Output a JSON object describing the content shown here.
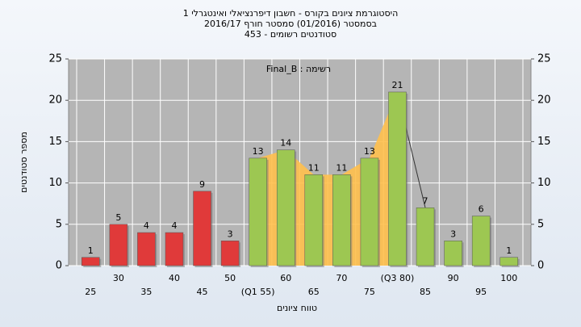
{
  "chart_data": {
    "type": "bar",
    "title": "היסטוגרמת ציונים בקורס - חשבון דיפרנציאלי ואינטגרלי 1",
    "subtitle": [
      "בסמסטר (01/2016) סמסטר חורף 2016/17",
      "סטודנטים רשומים - 453"
    ],
    "annotation": "רשימה : Final_B",
    "ylabel": "מספר סטודנטים",
    "xlabel": "טווח ציונים",
    "categories": [
      "25",
      "30",
      "35",
      "40",
      "45",
      "50",
      "(Q1 55)",
      "60",
      "65",
      "70",
      "75",
      "(Q3 80)",
      "85",
      "90",
      "95",
      "100"
    ],
    "values": [
      1,
      5,
      4,
      4,
      9,
      3,
      13,
      14,
      11,
      11,
      13,
      21,
      7,
      3,
      6,
      1
    ],
    "colors": [
      "#e03a3a",
      "#e03a3a",
      "#e03a3a",
      "#e03a3a",
      "#e03a3a",
      "#e03a3a",
      "#9dc752",
      "#9dc752",
      "#9dc752",
      "#9dc752",
      "#9dc752",
      "#9dc752",
      "#9dc752",
      "#9dc752",
      "#9dc752",
      "#9dc752"
    ],
    "area": {
      "color": "#ffc04d",
      "from": "(Q1 55)",
      "to": "(Q3 80)"
    },
    "ylim": [
      0,
      25
    ],
    "yticks": [
      0,
      5,
      10,
      15,
      20,
      25
    ],
    "y2lim": [
      0,
      25
    ],
    "y2ticks": [
      0,
      5,
      10,
      15,
      20,
      25
    ],
    "grid": true
  }
}
